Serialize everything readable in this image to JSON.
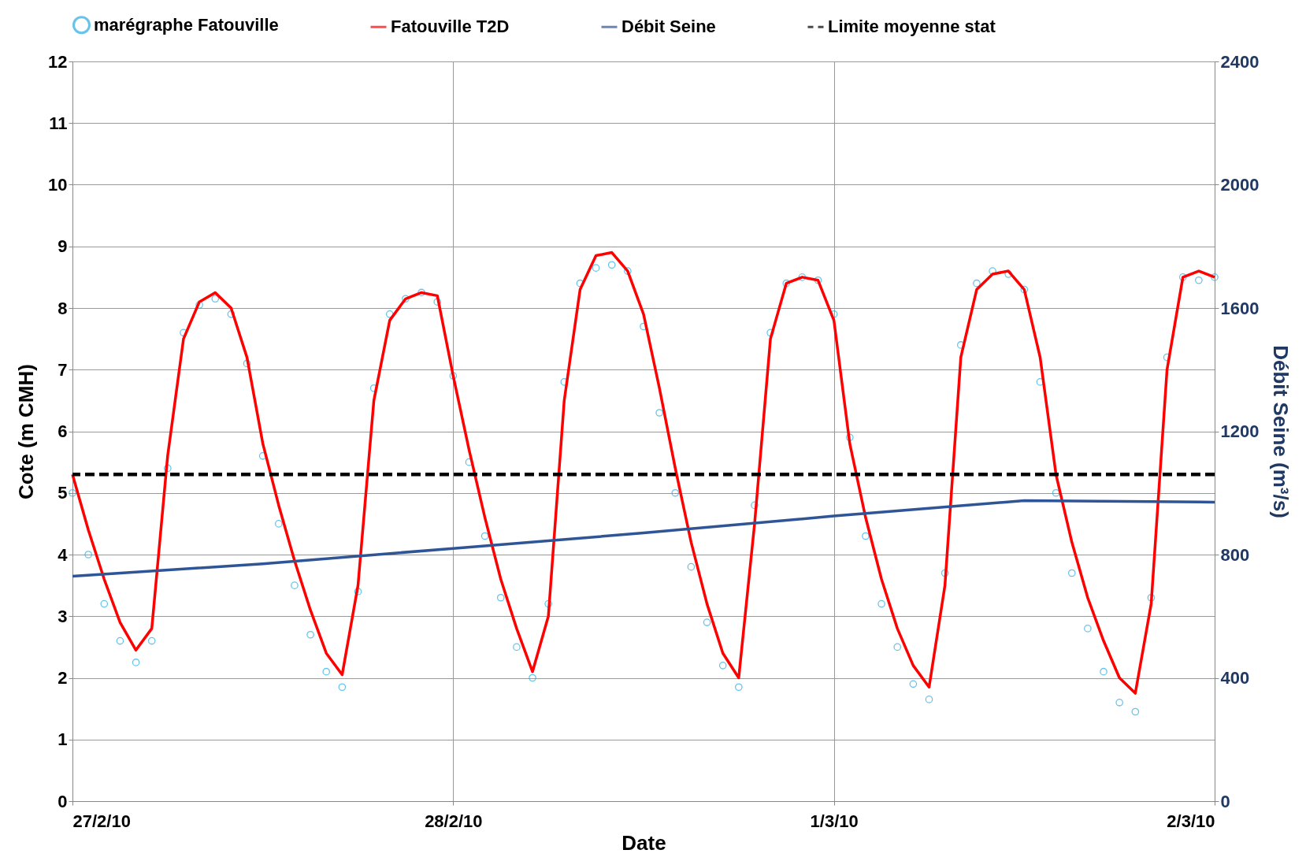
{
  "chart_data": {
    "type": "line",
    "xlabel": "Date",
    "ylabel": "Cote (m CMH)",
    "y2label": "Débit Seine (m³/s)",
    "x": [
      "--02-27T00:00",
      "--02-27T01:00",
      "--02-27T02:00",
      "--02-27T03:00",
      "--02-27T04:00",
      "--02-27T05:00",
      "--02-27T06:00",
      "--02-27T07:00",
      "--02-27T08:00",
      "--02-27T09:00",
      "--02-27T10:00",
      "--02-27T11:00",
      "--02-27T12:00",
      "--02-27T13:00",
      "--02-27T14:00",
      "--02-27T15:00",
      "--02-27T16:00",
      "--02-27T17:00",
      "--02-27T18:00",
      "--02-27T19:00",
      "--02-27T20:00",
      "--02-27T21:00",
      "--02-27T22:00",
      "--02-27T23:00",
      "--02-28T00:00",
      "--02-28T01:00",
      "--02-28T02:00",
      "--02-28T03:00",
      "--02-28T04:00",
      "--02-28T05:00",
      "--02-28T06:00",
      "--02-28T07:00",
      "--02-28T08:00",
      "--02-28T09:00",
      "--02-28T10:00",
      "--02-28T11:00",
      "--02-28T12:00",
      "--02-28T13:00",
      "--02-28T14:00",
      "--02-28T15:00",
      "--02-28T16:00",
      "--02-28T17:00",
      "--02-28T18:00",
      "--02-28T19:00",
      "--02-28T20:00",
      "--02-28T21:00",
      "--02-28T22:00",
      "--02-28T23:00",
      "--03-01T00:00",
      "--03-01T01:00",
      "--03-01T02:00",
      "--03-01T03:00",
      "--03-01T04:00",
      "--03-01T05:00",
      "--03-01T06:00",
      "--03-01T07:00",
      "--03-01T08:00",
      "--03-01T09:00",
      "--03-01T10:00",
      "--03-01T11:00",
      "--03-01T12:00",
      "--03-01T13:00",
      "--03-01T14:00",
      "--03-01T15:00",
      "--03-01T16:00",
      "--03-01T17:00",
      "--03-01T18:00",
      "--03-01T19:00",
      "--03-01T20:00",
      "--03-01T21:00",
      "--03-01T22:00",
      "--03-01T23:00",
      "--03-02T00:00"
    ],
    "series": [
      {
        "name": "marégraphe Fatouville",
        "type": "scatter",
        "color": "#29abe2",
        "values": [
          5.0,
          4.0,
          3.2,
          2.6,
          2.25,
          2.6,
          5.4,
          7.6,
          8.05,
          8.15,
          7.9,
          7.1,
          5.6,
          4.5,
          3.5,
          2.7,
          2.1,
          1.85,
          3.4,
          6.7,
          7.9,
          8.15,
          8.25,
          8.1,
          6.9,
          5.5,
          4.3,
          3.3,
          2.5,
          2.0,
          3.2,
          6.8,
          8.4,
          8.65,
          8.7,
          8.6,
          7.7,
          6.3,
          5.0,
          3.8,
          2.9,
          2.2,
          1.85,
          4.8,
          7.6,
          8.4,
          8.5,
          8.45,
          7.9,
          5.9,
          4.3,
          3.2,
          2.5,
          1.9,
          1.65,
          3.7,
          7.4,
          8.4,
          8.6,
          8.55,
          8.3,
          6.8,
          5.0,
          3.7,
          2.8,
          2.1,
          1.6,
          1.45,
          3.3,
          7.2,
          8.5,
          8.45,
          8.5
        ]
      },
      {
        "name": "Fatouville T2D",
        "color": "#ff0000",
        "values": [
          5.3,
          4.4,
          3.6,
          2.9,
          2.45,
          2.8,
          5.6,
          7.5,
          8.1,
          8.25,
          8.0,
          7.2,
          5.8,
          4.8,
          3.9,
          3.1,
          2.4,
          2.05,
          3.5,
          6.5,
          7.8,
          8.15,
          8.25,
          8.2,
          6.9,
          5.7,
          4.6,
          3.6,
          2.8,
          2.1,
          3.0,
          6.5,
          8.3,
          8.85,
          8.9,
          8.6,
          7.9,
          6.7,
          5.4,
          4.2,
          3.2,
          2.4,
          2.0,
          4.5,
          7.5,
          8.4,
          8.5,
          8.45,
          7.8,
          5.8,
          4.6,
          3.6,
          2.8,
          2.2,
          1.85,
          3.5,
          7.2,
          8.3,
          8.55,
          8.6,
          8.3,
          7.2,
          5.3,
          4.2,
          3.3,
          2.6,
          2.0,
          1.75,
          3.2,
          7.0,
          8.5,
          8.6,
          8.5
        ]
      },
      {
        "name": "Débit Seine",
        "axis": "y2",
        "color": "#2f5597",
        "x": [
          "--02-27T00:00",
          "--02-27T12:00",
          "--02-28T00:00",
          "--02-28T12:00",
          "--03-01T00:00",
          "--03-01T12:00",
          "--03-02T00:00"
        ],
        "values": [
          730,
          770,
          820,
          870,
          925,
          975,
          970
        ]
      }
    ],
    "ref_lines": [
      {
        "axis": "y",
        "value": 5.3,
        "label": "Limite moyenne stat",
        "color": "#000000",
        "line_style": "dashed"
      }
    ],
    "xlim": [
      "--02-27T00:00",
      "--03-02T00:00"
    ],
    "xticks": [
      {
        "value": "--02-27T00:00",
        "label": "27/2/10"
      },
      {
        "value": "--02-28T00:00",
        "label": "28/2/10"
      },
      {
        "value": "--03-01T00:00",
        "label": "1/3/10"
      },
      {
        "value": "--03-02T00:00",
        "label": "2/3/10"
      }
    ],
    "ylim": [
      0,
      12
    ],
    "yticks": [
      0,
      1,
      2,
      3,
      4,
      5,
      6,
      7,
      8,
      9,
      10,
      11,
      12
    ],
    "y2lim": [
      0,
      2400
    ],
    "y2ticks": [
      0,
      400,
      800,
      1200,
      1600,
      2000,
      2400
    ],
    "grid": true,
    "legend": "top"
  }
}
